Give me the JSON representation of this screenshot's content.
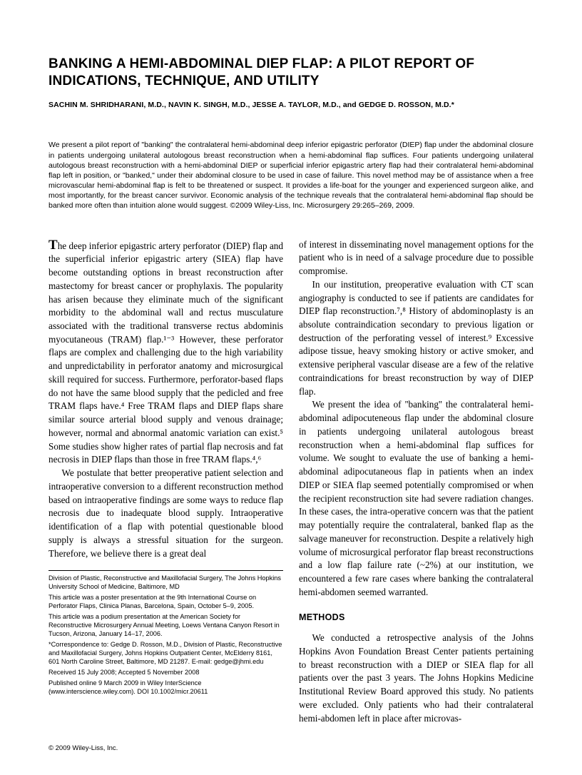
{
  "title": "BANKING A HEMI-ABDOMINAL DIEP FLAP: A PILOT REPORT OF INDICATIONS, TECHNIQUE, AND UTILITY",
  "authors": "SACHIN M. SHRIDHARANI, M.D., NAVIN K. SINGH, M.D., JESSE A. TAYLOR, M.D., and GEDGE D. ROSSON, M.D.*",
  "abstract": "We present a pilot report of \"banking\" the contralateral hemi-abdominal deep inferior epigastric perforator (DIEP) flap under the abdominal closure in patients undergoing unilateral autologous breast reconstruction when a hemi-abdominal flap suffices. Four patients undergoing unilateral autologous breast reconstruction with a hemi-abdominal DIEP or superficial inferior epigastric artery flap had their contralateral hemi-abdominal flap left in position, or \"banked,\" under their abdominal closure to be used in case of failure. This novel method may be of assistance when a free microvascular hemi-abdominal flap is felt to be threatened or suspect. It provides a life-boat for the younger and experienced surgeon alike, and most importantly, for the breast cancer survivor. Economic analysis of the technique reveals that the contralateral hemi-abdominal flap should be banked more often than intuition alone would suggest. ©2009 Wiley-Liss, Inc. Microsurgery 29:265–269, 2009.",
  "drop": "T",
  "p1_rest": "he deep inferior epigastric artery perforator (DIEP) flap and the superficial inferior epigastric artery (SIEA) flap have become outstanding options in breast reconstruction after mastectomy for breast cancer or prophylaxis. The popularity has arisen because they eliminate much of the significant morbidity to the abdominal wall and rectus musculature associated with the traditional transverse rectus abdominis myocutaneous (TRAM) flap.¹⁻³ However, these perforator flaps are complex and challenging due to the high variability and unpredictability in perforator anatomy and microsurgical skill required for success. Furthermore, perforator-based flaps do not have the same blood supply that the pedicled and free TRAM flaps have.⁴ Free TRAM flaps and DIEP flaps share similar source arterial blood supply and venous drainage; however, normal and abnormal anatomic variation can exist.⁵ Some studies show higher rates of partial flap necrosis and fat necrosis in DIEP flaps than those in free TRAM flaps.⁴,⁶",
  "p2": "We postulate that better preoperative patient selection and intraoperative conversion to a different reconstruction method based on intraoperative findings are some ways to reduce flap necrosis due to inadequate blood supply. Intraoperative identification of a flap with potential questionable blood supply is always a stressful situation for the surgeon. Therefore, we believe there is a great deal",
  "fn1": "Division of Plastic, Reconstructive and Maxillofacial Surgery, The Johns Hopkins University School of Medicine, Baltimore, MD",
  "fn2": "This article was a poster presentation at the 9th International Course on Perforator Flaps, Clinica Planas, Barcelona, Spain, October 5–9, 2005.",
  "fn3": "This article was a podium presentation at the American Society for Reconstructive Microsurgery Annual Meeting, Loews Ventana Canyon Resort in Tucson, Arizona, January 14–17, 2006.",
  "fn4": "*Correspondence to: Gedge D. Rosson, M.D., Division of Plastic, Reconstructive and Maxillofacial Surgery, Johns Hopkins Outpatient Center, McElderry 8161, 601 North Caroline Street, Baltimore, MD 21287. E-mail: gedge@jhmi.edu",
  "fn5": "Received 15 July 2008; Accepted 5 November 2008",
  "fn6": "Published online 9 March 2009 in Wiley InterScience (www.interscience.wiley.com). DOI 10.1002/micr.20611",
  "p3": "of interest in disseminating novel management options for the patient who is in need of a salvage procedure due to possible compromise.",
  "p4": "In our institution, preoperative evaluation with CT scan angiography is conducted to see if patients are candidates for DIEP flap reconstruction.⁷,⁸ History of abdominoplasty is an absolute contraindication secondary to previous ligation or destruction of the perforating vessel of interest.⁹ Excessive adipose tissue, heavy smoking history or active smoker, and extensive peripheral vascular disease are a few of the relative contraindications for breast reconstruction by way of DIEP flap.",
  "p5": "We present the idea of ''banking'' the contralateral hemi-abdominal adipocuteneous flap under the abdominal closure in patients undergoing unilateral autologous breast reconstruction when a hemi-abdominal flap suffices for volume. We sought to evaluate the use of banking a hemi-abdominal adipocutaneous flap in patients when an index DIEP or SIEA flap seemed potentially compromised or when the recipient reconstruction site had severe radiation changes. In these cases, the intra-operative concern was that the patient may potentially require the contralateral, banked flap as the salvage maneuver for reconstruction. Despite a relatively high volume of microsurgical perforator flap breast reconstructions and a low flap failure rate (~2%) at our institution, we encountered a few rare cases where banking the contralateral hemi-abdomen seemed warranted.",
  "methods_head": "METHODS",
  "p6": "We conducted a retrospective analysis of the Johns Hopkins Avon Foundation Breast Center patients pertaining to breast reconstruction with a DIEP or SIEA flap for all patients over the past 3 years. The Johns Hopkins Medicine Institutional Review Board approved this study. No patients were excluded. Only patients who had their contralateral hemi-abdomen left in place after microvas-",
  "copyright": "© 2009 Wiley-Liss, Inc."
}
